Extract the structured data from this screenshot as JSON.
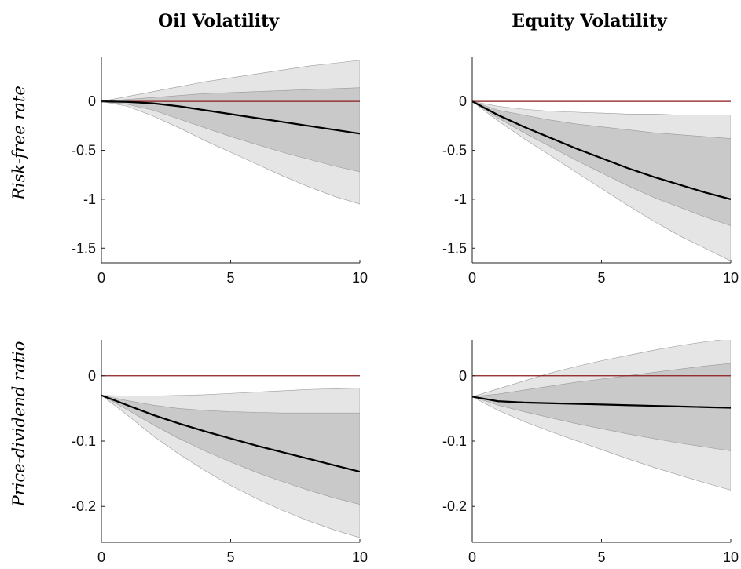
{
  "figure": {
    "column_titles": [
      "Oil Volatility",
      "Equity Volatility"
    ],
    "row_titles": [
      "Risk-free rate",
      "Price-dividend ratio"
    ]
  },
  "colors": {
    "outer_band": "#e5e5e5",
    "inner_band": "#c9c9c9",
    "band_edge": "#9a9a9a",
    "median_line": "#000000",
    "zero_line": "#8b1a1a"
  },
  "chart_data": [
    {
      "type": "area",
      "title": "",
      "column": "Oil Volatility",
      "row": "Risk-free rate",
      "xlim": [
        0,
        10
      ],
      "ylim": [
        -1.65,
        0.45
      ],
      "xticks": [
        0,
        5,
        10
      ],
      "yticks": [
        0,
        -0.5,
        -1,
        -1.5
      ],
      "ytick_labels": [
        "0",
        "-0.5",
        "-1",
        "-1.5"
      ],
      "zero_line": true,
      "x": [
        0,
        1,
        2,
        3,
        4,
        5,
        6,
        7,
        8,
        9,
        10
      ],
      "median": [
        0,
        -0.005,
        -0.02,
        -0.05,
        -0.09,
        -0.13,
        -0.17,
        -0.21,
        -0.25,
        -0.29,
        -0.33
      ],
      "inner_band": {
        "lower": [
          0,
          -0.03,
          -0.09,
          -0.18,
          -0.27,
          -0.36,
          -0.44,
          -0.52,
          -0.59,
          -0.66,
          -0.72
        ],
        "upper": [
          0,
          0.02,
          0.04,
          0.06,
          0.08,
          0.09,
          0.1,
          0.11,
          0.12,
          0.13,
          0.14
        ]
      },
      "outer_band": {
        "lower": [
          0,
          -0.05,
          -0.15,
          -0.27,
          -0.4,
          -0.52,
          -0.64,
          -0.76,
          -0.87,
          -0.97,
          -1.05
        ],
        "upper": [
          0,
          0.05,
          0.1,
          0.15,
          0.2,
          0.24,
          0.28,
          0.32,
          0.36,
          0.39,
          0.42
        ]
      }
    },
    {
      "type": "area",
      "title": "",
      "column": "Equity Volatility",
      "row": "Risk-free rate",
      "xlim": [
        0,
        10
      ],
      "ylim": [
        -1.65,
        0.45
      ],
      "xticks": [
        0,
        5,
        10
      ],
      "yticks": [
        0,
        -0.5,
        -1,
        -1.5
      ],
      "ytick_labels": [
        "0",
        "-0.5",
        "-1",
        "-1.5"
      ],
      "zero_line": true,
      "x": [
        0,
        1,
        2,
        3,
        4,
        5,
        6,
        7,
        8,
        9,
        10
      ],
      "median": [
        0,
        -0.14,
        -0.26,
        -0.37,
        -0.48,
        -0.58,
        -0.68,
        -0.77,
        -0.85,
        -0.93,
        -1.0
      ],
      "inner_band": {
        "lower": [
          0,
          -0.17,
          -0.32,
          -0.46,
          -0.6,
          -0.73,
          -0.86,
          -0.98,
          -1.08,
          -1.18,
          -1.27
        ],
        "upper": [
          0,
          -0.09,
          -0.14,
          -0.19,
          -0.23,
          -0.26,
          -0.29,
          -0.32,
          -0.34,
          -0.36,
          -0.38
        ]
      },
      "outer_band": {
        "lower": [
          0,
          -0.2,
          -0.38,
          -0.55,
          -0.72,
          -0.89,
          -1.06,
          -1.22,
          -1.37,
          -1.5,
          -1.63
        ],
        "upper": [
          0,
          -0.05,
          -0.08,
          -0.1,
          -0.11,
          -0.12,
          -0.13,
          -0.13,
          -0.14,
          -0.14,
          -0.14
        ]
      }
    },
    {
      "type": "area",
      "title": "",
      "column": "Oil Volatility",
      "row": "Price-dividend ratio",
      "xlim": [
        0,
        10
      ],
      "ylim": [
        -0.255,
        0.055
      ],
      "xticks": [
        0,
        5,
        10
      ],
      "yticks": [
        0,
        -0.1,
        -0.2
      ],
      "ytick_labels": [
        "0",
        "-0.1",
        "-0.2"
      ],
      "zero_line": true,
      "x": [
        0,
        1,
        2,
        3,
        4,
        5,
        6,
        7,
        8,
        9,
        10
      ],
      "median": [
        -0.03,
        -0.045,
        -0.06,
        -0.073,
        -0.085,
        -0.096,
        -0.107,
        -0.117,
        -0.127,
        -0.137,
        -0.147
      ],
      "inner_band": {
        "lower": [
          -0.03,
          -0.052,
          -0.075,
          -0.096,
          -0.115,
          -0.132,
          -0.148,
          -0.162,
          -0.175,
          -0.187,
          -0.197
        ],
        "upper": [
          -0.03,
          -0.038,
          -0.045,
          -0.05,
          -0.053,
          -0.055,
          -0.056,
          -0.057,
          -0.057,
          -0.057,
          -0.057
        ]
      },
      "outer_band": {
        "lower": [
          -0.03,
          -0.06,
          -0.092,
          -0.12,
          -0.145,
          -0.168,
          -0.188,
          -0.206,
          -0.222,
          -0.236,
          -0.248
        ],
        "upper": [
          -0.03,
          -0.031,
          -0.031,
          -0.03,
          -0.029,
          -0.027,
          -0.025,
          -0.023,
          -0.021,
          -0.02,
          -0.019
        ]
      }
    },
    {
      "type": "area",
      "title": "",
      "column": "Equity Volatility",
      "row": "Price-dividend ratio",
      "xlim": [
        0,
        10
      ],
      "ylim": [
        -0.255,
        0.055
      ],
      "xticks": [
        0,
        5,
        10
      ],
      "yticks": [
        0,
        -0.1,
        -0.2
      ],
      "ytick_labels": [
        "0",
        "-0.1",
        "-0.2"
      ],
      "zero_line": true,
      "x": [
        0,
        1,
        2,
        3,
        4,
        5,
        6,
        7,
        8,
        9,
        10
      ],
      "median": [
        -0.032,
        -0.039,
        -0.041,
        -0.042,
        -0.043,
        -0.044,
        -0.045,
        -0.046,
        -0.047,
        -0.048,
        -0.049
      ],
      "inner_band": {
        "lower": [
          -0.032,
          -0.045,
          -0.055,
          -0.064,
          -0.073,
          -0.081,
          -0.089,
          -0.096,
          -0.103,
          -0.109,
          -0.115
        ],
        "upper": [
          -0.032,
          -0.028,
          -0.022,
          -0.016,
          -0.01,
          -0.005,
          0,
          0.005,
          0.01,
          0.015,
          0.019
        ]
      },
      "outer_band": {
        "lower": [
          -0.032,
          -0.053,
          -0.07,
          -0.085,
          -0.099,
          -0.113,
          -0.127,
          -0.14,
          -0.152,
          -0.164,
          -0.175
        ],
        "upper": [
          -0.032,
          -0.02,
          -0.008,
          0.004,
          0.014,
          0.023,
          0.031,
          0.039,
          0.046,
          0.052,
          0.057
        ]
      }
    }
  ]
}
